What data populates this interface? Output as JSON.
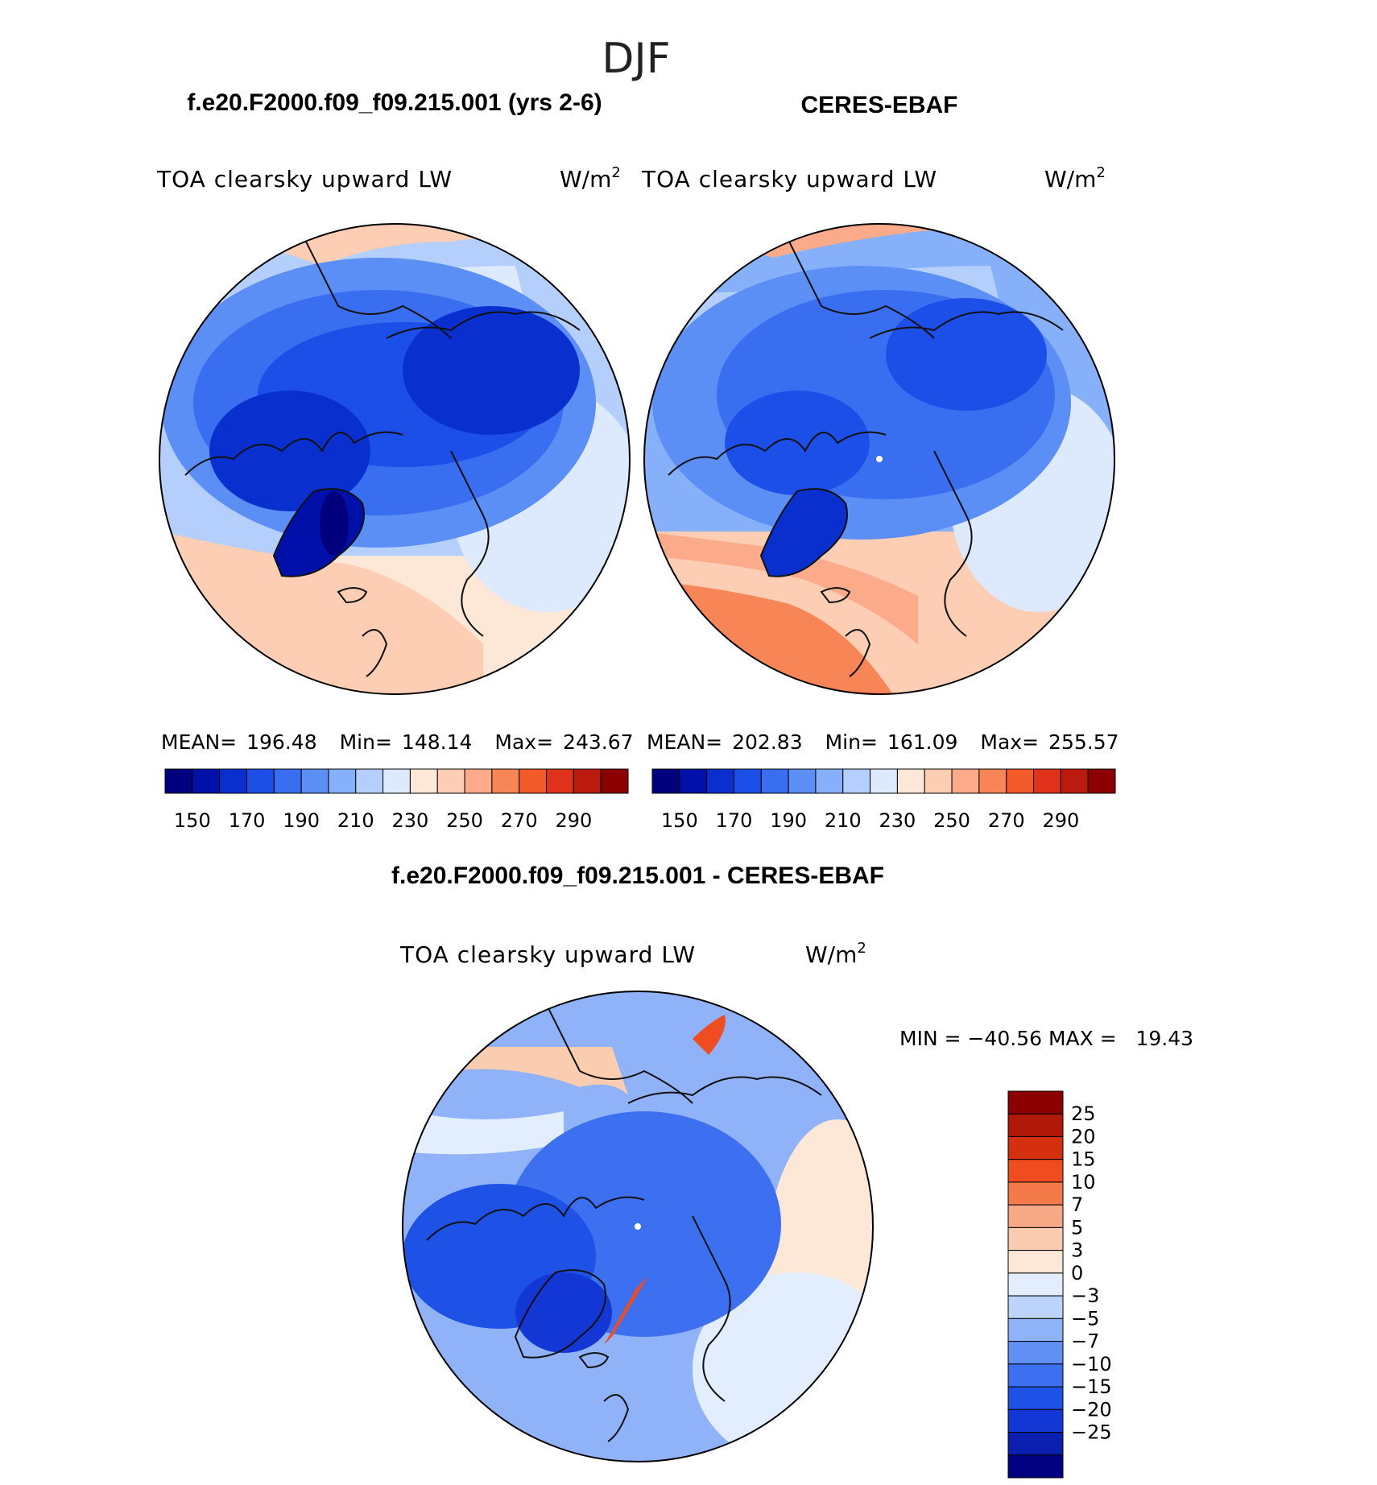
{
  "season": "DJF",
  "colors": {
    "abs": [
      "#00007f",
      "#0010a8",
      "#0930cf",
      "#1c4ee8",
      "#3a6ef0",
      "#5b8ff5",
      "#86b0fa",
      "#b4cffc",
      "#dde9fd",
      "#fde7d6",
      "#fdcdb4",
      "#fbab8a",
      "#f78556",
      "#f25a2a",
      "#e0321a",
      "#bb1a0e",
      "#8b0000"
    ],
    "diff": [
      "#000080",
      "#0a1fb0",
      "#1337d4",
      "#1e52e6",
      "#3c70f0",
      "#6190f5",
      "#8fb2f8",
      "#bcd3fb",
      "#e2edfe",
      "#fde8d8",
      "#fbcdb0",
      "#f7a884",
      "#f47a4a",
      "#ef4c20",
      "#d43010",
      "#b01808",
      "#8b0000"
    ],
    "scheme": {
      "model": "blue",
      "obs": "blue-orange",
      "diff": "blue"
    }
  },
  "panels": {
    "left": {
      "case_title": "f.e20.F2000.f09_f09.215.001 (yrs 2-6)",
      "variable": "TOA clearsky upward LW",
      "units": "W/m",
      "units_sup": "2",
      "stats": {
        "mean_label": "MEAN=",
        "mean": "196.48",
        "min_label": "Min=",
        "min": "148.14",
        "max_label": "Max=",
        "max": "243.67"
      }
    },
    "right": {
      "case_title": "CERES-EBAF",
      "variable": "TOA clearsky upward LW",
      "units": "W/m",
      "units_sup": "2",
      "stats": {
        "mean_label": "MEAN=",
        "mean": "202.83",
        "min_label": "Min=",
        "min": "161.09",
        "max_label": "Max=",
        "max": "255.57"
      }
    },
    "diff": {
      "case_title": "f.e20.F2000.f09_f09.215.001 - CERES-EBAF",
      "variable": "TOA clearsky upward LW",
      "units": "W/m",
      "units_sup": "2",
      "min_max_text": "MIN = −40.56 MAX =   19.43"
    }
  },
  "chart_data": [
    {
      "type": "heatmap",
      "title": "f.e20.F2000.f09_f09.215.001 (yrs 2-6)",
      "projection": "north polar stereographic",
      "variable": "TOA clearsky upward LW",
      "units": "W/m2",
      "mean": 196.48,
      "min": 148.14,
      "max": 243.67,
      "colorbar_levels": [
        145,
        150,
        155,
        160,
        165,
        170,
        175,
        180,
        185,
        190,
        195,
        200,
        205,
        210,
        215,
        220,
        225,
        230,
        235,
        240,
        245,
        250,
        255,
        260,
        265,
        270,
        275,
        280,
        285,
        290,
        295
      ],
      "colorbar_tick_labels": [
        "150",
        "170",
        "190",
        "210",
        "230",
        "250",
        "270",
        "290"
      ]
    },
    {
      "type": "heatmap",
      "title": "CERES-EBAF",
      "projection": "north polar stereographic",
      "variable": "TOA clearsky upward LW",
      "units": "W/m2",
      "mean": 202.83,
      "min": 161.09,
      "max": 255.57,
      "colorbar_tick_labels": [
        "150",
        "170",
        "190",
        "210",
        "230",
        "250",
        "270",
        "290"
      ]
    },
    {
      "type": "heatmap",
      "title": "f.e20.F2000.f09_f09.215.001 - CERES-EBAF",
      "projection": "north polar stereographic",
      "variable": "TOA clearsky upward LW",
      "units": "W/m2",
      "min": -40.56,
      "max": 19.43,
      "colorbar_levels": [
        -25,
        -20,
        -15,
        -10,
        -7,
        -5,
        -3,
        0,
        3,
        5,
        7,
        10,
        15,
        20,
        25
      ],
      "colorbar_tick_labels": [
        "25",
        "20",
        "15",
        "10",
        "7",
        "5",
        "3",
        "0",
        "−3",
        "−5",
        "−7",
        "−10",
        "−15",
        "−20",
        "−25"
      ]
    }
  ]
}
